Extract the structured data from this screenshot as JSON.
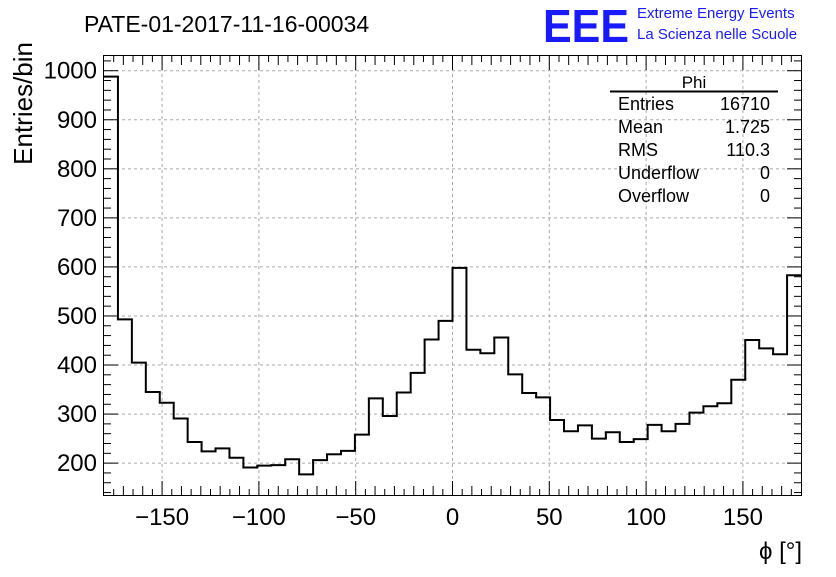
{
  "header": {
    "title": "PATE-01-2017-11-16-00034",
    "logo_text": "EEE",
    "logo_line1": "Extreme Energy Events",
    "logo_line2": "La Scienza nelle Scuole"
  },
  "stats": {
    "title": "Phi",
    "rows": [
      {
        "label": "Entries",
        "value": "16710"
      },
      {
        "label": "Mean",
        "value": "1.725"
      },
      {
        "label": "RMS",
        "value": "110.3"
      },
      {
        "label": "Underflow",
        "value": "0"
      },
      {
        "label": "Overflow",
        "value": "0"
      }
    ]
  },
  "colors": {
    "logo": "#1a1aff",
    "line": "#000000",
    "grid": "#aaaaaa"
  },
  "chart_data": {
    "type": "bar",
    "subtype": "step-histogram",
    "xlabel": "ϕ [°]",
    "ylabel": "Entries/bin",
    "xlim": [
      -180,
      180
    ],
    "ylim": [
      135,
      1030
    ],
    "bin_width": 7.2,
    "x_ticks": [
      -150,
      -100,
      -50,
      0,
      50,
      100,
      150
    ],
    "x_tick_labels": [
      "−150",
      "−100",
      "−50",
      "0",
      "50",
      "100",
      "150"
    ],
    "y_ticks": [
      200,
      300,
      400,
      500,
      600,
      700,
      800,
      900,
      1000
    ],
    "y_tick_labels": [
      "200",
      "300",
      "400",
      "500",
      "600",
      "700",
      "800",
      "900",
      "1000"
    ],
    "grid": true,
    "values": [
      988,
      493,
      405,
      345,
      323,
      291,
      243,
      224,
      230,
      211,
      191,
      195,
      196,
      208,
      177,
      206,
      218,
      225,
      258,
      332,
      296,
      344,
      384,
      452,
      490,
      598,
      431,
      424,
      456,
      381,
      343,
      334,
      288,
      265,
      277,
      250,
      263,
      243,
      249,
      278,
      265,
      280,
      303,
      316,
      322,
      370,
      451,
      434,
      422,
      583
    ]
  }
}
